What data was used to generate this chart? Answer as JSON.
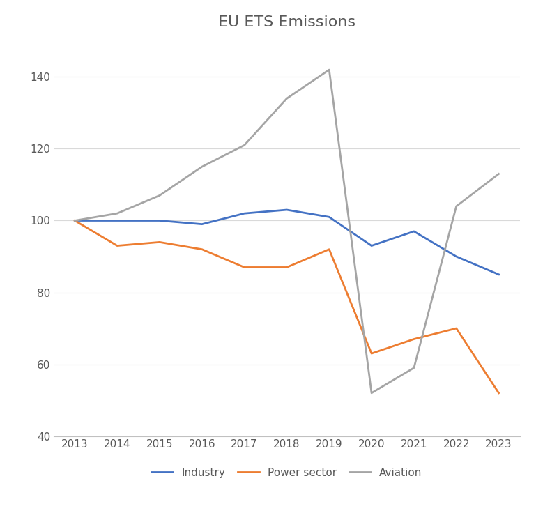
{
  "title": "EU ETS Emissions",
  "years": [
    2013,
    2014,
    2015,
    2016,
    2017,
    2018,
    2019,
    2020,
    2021,
    2022,
    2023
  ],
  "industry": [
    100,
    100,
    100,
    99,
    102,
    103,
    101,
    93,
    97,
    90,
    85
  ],
  "power_sector": [
    100,
    93,
    94,
    92,
    87,
    87,
    92,
    63,
    67,
    70,
    52
  ],
  "aviation": [
    100,
    102,
    107,
    115,
    121,
    134,
    142,
    52,
    59,
    104,
    113
  ],
  "industry_color": "#4472C4",
  "power_color": "#ED7D31",
  "aviation_color": "#A5A5A5",
  "line_width": 2.0,
  "ylim": [
    40,
    150
  ],
  "yticks": [
    40,
    60,
    80,
    100,
    120,
    140
  ],
  "legend_labels": [
    "Industry",
    "Power sector",
    "Aviation"
  ],
  "background_color": "#ffffff",
  "grid_color": "#d9d9d9",
  "title_fontsize": 16,
  "tick_fontsize": 11,
  "legend_fontsize": 11,
  "title_color": "#595959"
}
